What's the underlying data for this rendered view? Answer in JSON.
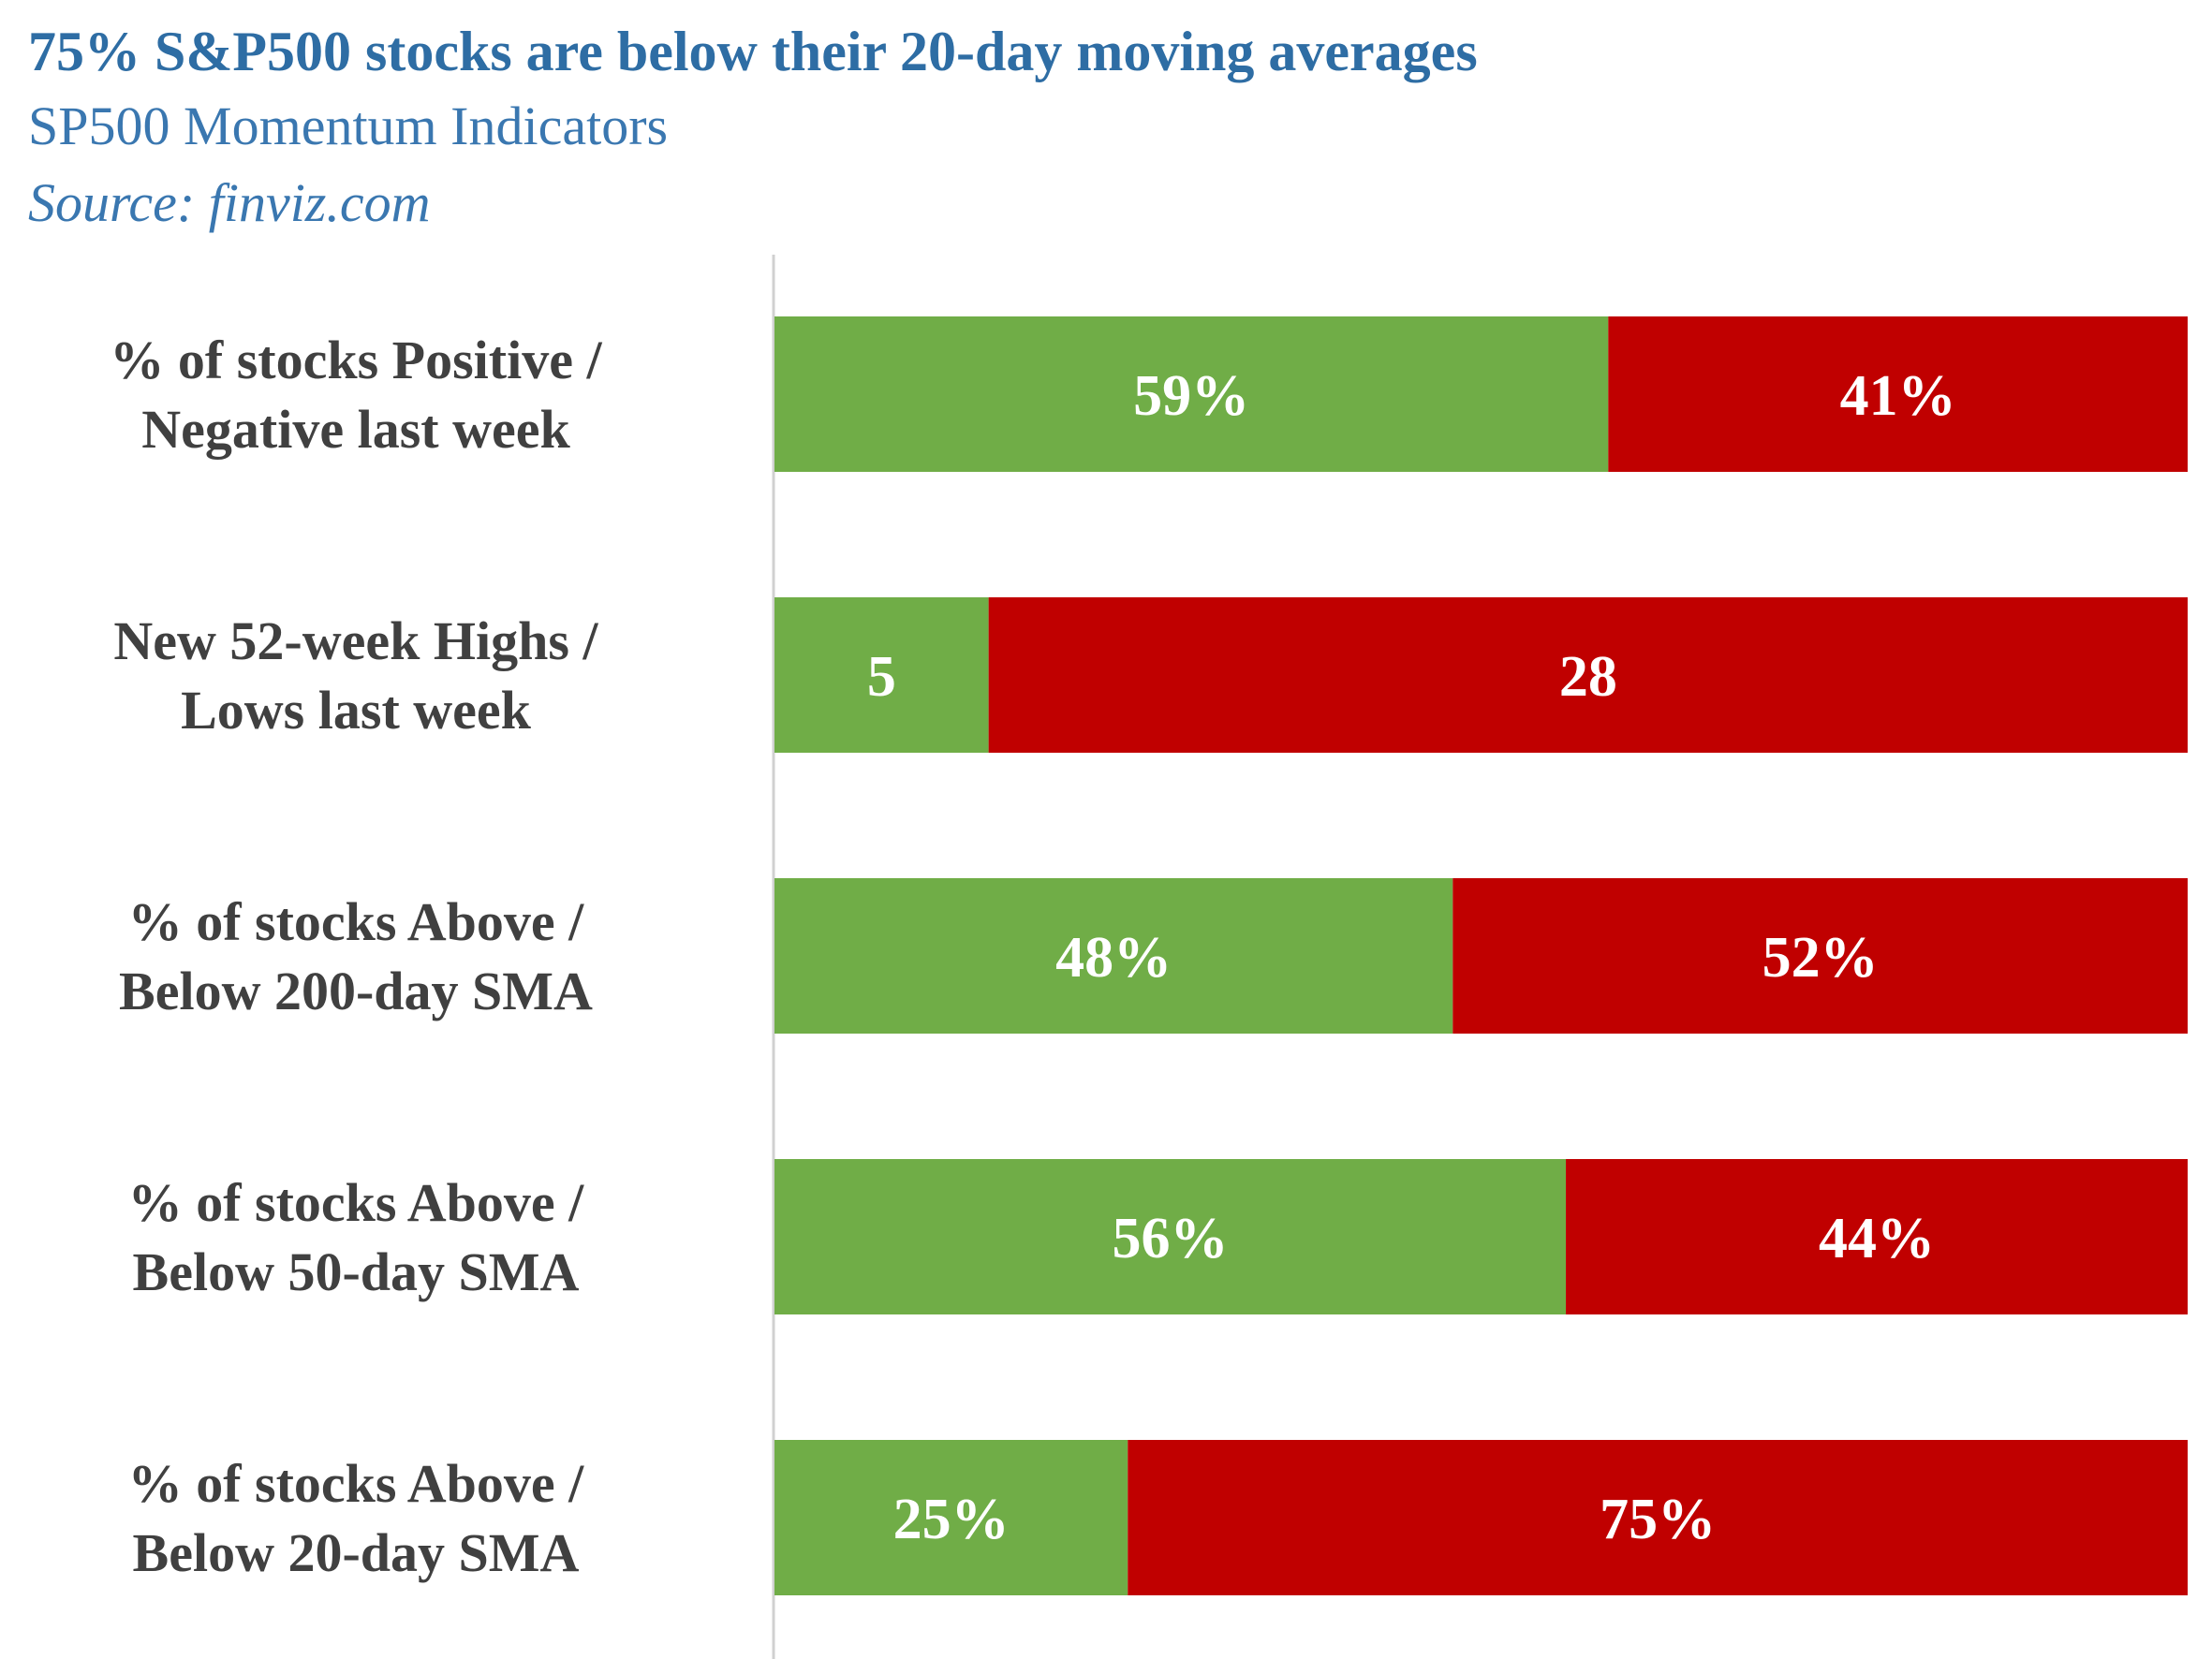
{
  "header": {
    "title": "75% S&P500 stocks are below their 20-day moving averages",
    "subtitle": "SP500 Momentum Indicators",
    "source": "Source: finviz.com"
  },
  "colors": {
    "positive": "#70ad47",
    "negative": "#c00000",
    "title": "#2e6da4",
    "label": "#404040",
    "axis": "#d0d0d0"
  },
  "chart_data": {
    "type": "bar",
    "orientation": "horizontal",
    "stacked": true,
    "normalized": true,
    "categories": [
      [
        "% of stocks Positive /",
        "Negative last week"
      ],
      [
        "New 52-week Highs /",
        "Lows last week"
      ],
      [
        "% of stocks Above /",
        "Below 200-day SMA"
      ],
      [
        "% of stocks Above /",
        "Below 50-day SMA"
      ],
      [
        "% of stocks Above /",
        "Below 20-day SMA"
      ]
    ],
    "series": [
      {
        "color": "#70ad47",
        "values": [
          59,
          5,
          48,
          56,
          25
        ],
        "labels": [
          "59%",
          "5",
          "48%",
          "56%",
          "25%"
        ]
      },
      {
        "color": "#c00000",
        "values": [
          41,
          28,
          52,
          44,
          75
        ],
        "labels": [
          "41%",
          "28",
          "52%",
          "44%",
          "75%"
        ]
      }
    ],
    "title": "75% S&P500 stocks are below their 20-day moving averages",
    "subtitle": "SP500 Momentum Indicators",
    "grid": false,
    "legend": "none"
  }
}
